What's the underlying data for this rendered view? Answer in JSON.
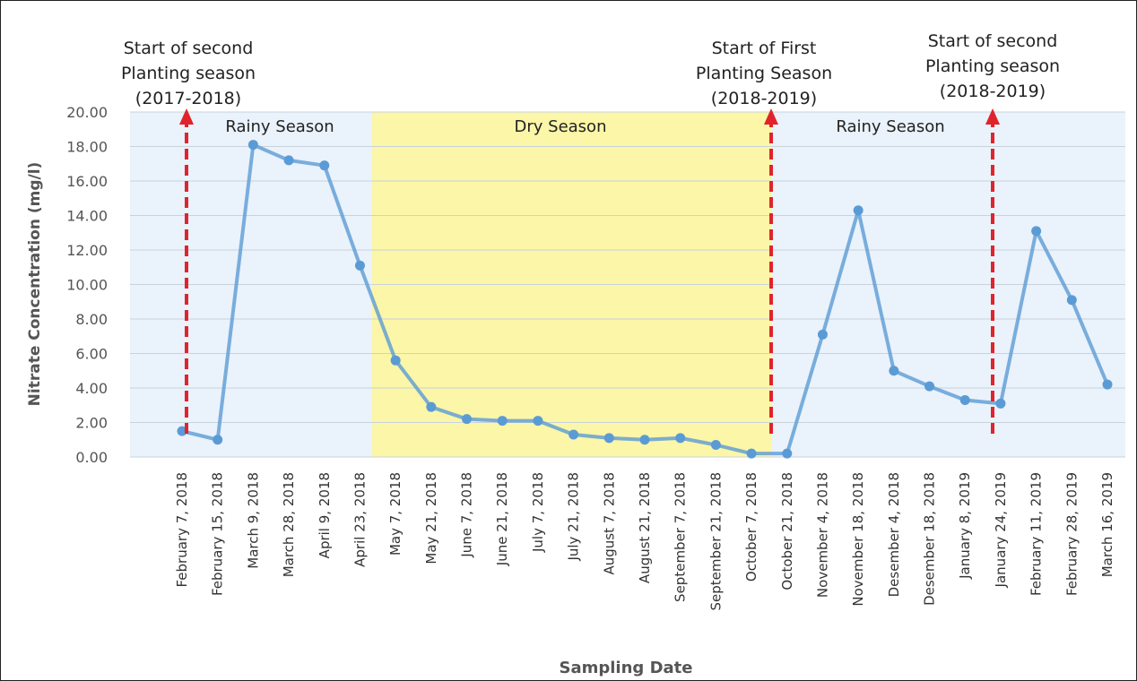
{
  "chart_data": {
    "type": "line",
    "y_label": "Nitrate Concentration (mg/l)",
    "x_label": "Sampling Date",
    "categories": [
      "February 7, 2018",
      "February 15, 2018",
      "March 9, 2018",
      "March 28, 2018",
      "April 9, 2018",
      "April 23, 2018",
      "May 7, 2018",
      "May 21, 2018",
      "June 7, 2018",
      "June 21, 2018",
      "July 7, 2018",
      "July 21, 2018",
      "August 7, 2018",
      "August 21, 2018",
      "September 7, 2018",
      "September 21, 2018",
      "October 7, 2018",
      "October 21, 2018",
      "November 4, 2018",
      "November 18, 2018",
      "Desember 4, 2018",
      "Desember 18, 2018",
      "January 8, 2019",
      "January 24, 2019",
      "February 11, 2019",
      "February 28, 2019",
      "March 16, 2019"
    ],
    "values": [
      1.5,
      1.0,
      18.1,
      17.2,
      16.9,
      11.1,
      5.6,
      2.9,
      2.2,
      2.1,
      2.1,
      1.3,
      1.1,
      1.0,
      1.1,
      0.7,
      0.2,
      0.2,
      7.1,
      14.3,
      5.0,
      4.1,
      3.3,
      3.1,
      13.1,
      9.1,
      4.2
    ],
    "color": "#5b9bd5",
    "ylim": [
      0,
      20
    ],
    "yticks": [
      {
        "value": 0,
        "label": "0.00"
      },
      {
        "value": 2,
        "label": "2.00"
      },
      {
        "value": 4,
        "label": "4.00"
      },
      {
        "value": 6,
        "label": "6.00"
      },
      {
        "value": 8,
        "label": "8.00"
      },
      {
        "value": 10,
        "label": "10.00"
      },
      {
        "value": 12,
        "label": "12.00"
      },
      {
        "value": 14,
        "label": "14.00"
      },
      {
        "value": 16,
        "label": "16.00"
      },
      {
        "value": 18,
        "label": "18.00"
      },
      {
        "value": 20,
        "label": "20.00"
      }
    ],
    "grid": true,
    "seasons": [
      "Rainy Season",
      "Dry Season",
      "Rainy Season"
    ],
    "annotations": [
      [
        "Start of second",
        "Planting season",
        "(2017-2018)"
      ],
      [
        "Start of First",
        "Planting Season",
        "(2018-2019)"
      ],
      [
        "Start of second",
        "Planting season",
        "(2018-2019)"
      ]
    ]
  }
}
